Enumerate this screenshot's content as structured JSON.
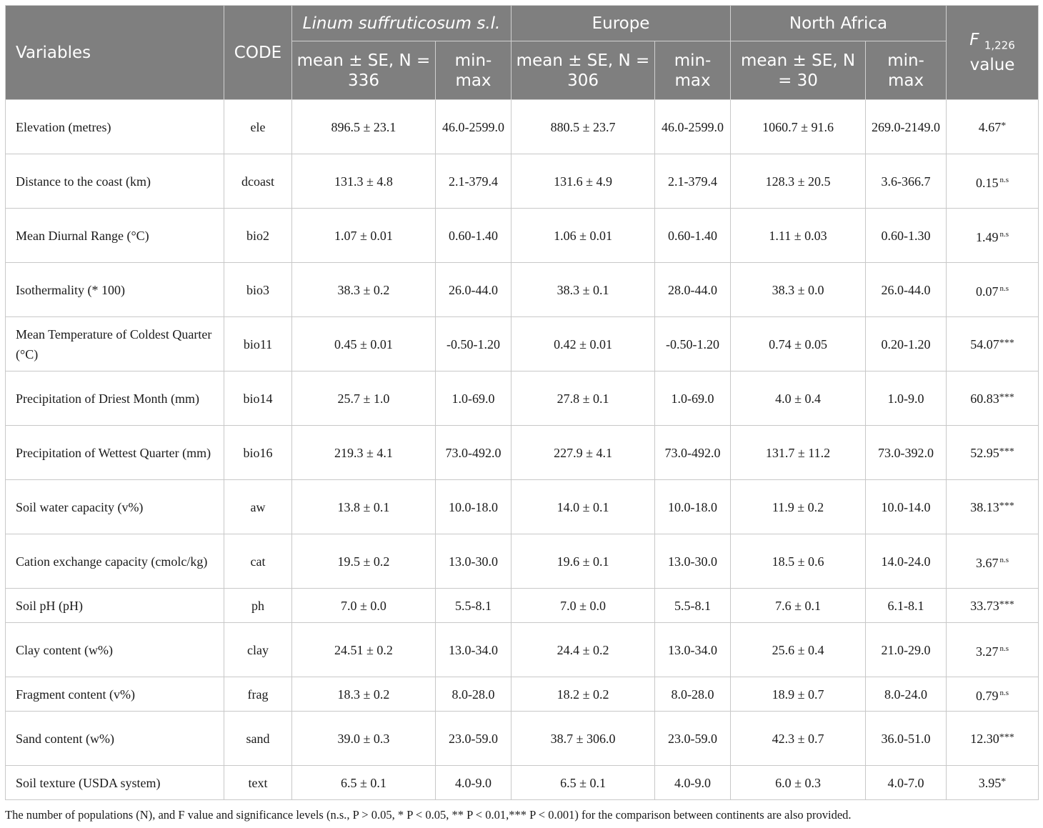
{
  "table": {
    "header": {
      "variables": "Variables",
      "code": "CODE",
      "group1": "Linum suffruticosum s.l.",
      "group2": "Europe",
      "group3": "North Africa",
      "f_letter": "F",
      "f_sub": "1,226",
      "f_value": "value",
      "g1_mean": "mean ± SE, N = 336",
      "g1_minmax": "min-max",
      "g2_mean": "mean ± SE, N = 306",
      "g2_minmax": "min-max",
      "g3_mean": "mean ± SE, N = 30",
      "g3_minmax": "min-max"
    },
    "rows": [
      {
        "var": "Elevation (metres)",
        "code": "ele",
        "m1": "896.5 ± 23.1",
        "r1": "46.0-2599.0",
        "m2": "880.5 ± 23.7",
        "r2": "46.0-2599.0",
        "m3": "1060.7 ± 91.6",
        "r3": "269.0-2149.0",
        "f": "4.67",
        "sig": "*"
      },
      {
        "var": "Distance to the coast (km)",
        "code": "dcoast",
        "m1": "131.3 ± 4.8",
        "r1": "2.1-379.4",
        "m2": "131.6 ± 4.9",
        "r2": "2.1-379.4",
        "m3": "128.3 ± 20.5",
        "r3": "3.6-366.7",
        "f": "0.15",
        "sig": "n.s"
      },
      {
        "var": "Mean Diurnal Range (°C)",
        "code": "bio2",
        "m1": "1.07 ± 0.01",
        "r1": "0.60-1.40",
        "m2": "1.06 ± 0.01",
        "r2": "0.60-1.40",
        "m3": "1.11 ± 0.03",
        "r3": "0.60-1.30",
        "f": "1.49",
        "sig": "n.s"
      },
      {
        "var": "Isothermality (* 100)",
        "code": "bio3",
        "m1": "38.3 ± 0.2",
        "r1": "26.0-44.0",
        "m2": "38.3 ± 0.1",
        "r2": "28.0-44.0",
        "m3": "38.3 ± 0.0",
        "r3": "26.0-44.0",
        "f": "0.07",
        "sig": "n.s"
      },
      {
        "var": "Mean Temperature of Coldest Quarter (°C)",
        "code": "bio11",
        "m1": "0.45 ± 0.01",
        "r1": "-0.50-1.20",
        "m2": "0.42 ± 0.01",
        "r2": "-0.50-1.20",
        "m3": "0.74 ± 0.05",
        "r3": "0.20-1.20",
        "f": "54.07",
        "sig": "***"
      },
      {
        "var": "Precipitation of Driest Month (mm)",
        "code": "bio14",
        "m1": "25.7 ± 1.0",
        "r1": "1.0-69.0",
        "m2": "27.8 ± 0.1",
        "r2": "1.0-69.0",
        "m3": "4.0 ± 0.4",
        "r3": "1.0-9.0",
        "f": "60.83",
        "sig": "***"
      },
      {
        "var": "Precipitation of Wettest Quarter (mm)",
        "code": "bio16",
        "m1": "219.3 ± 4.1",
        "r1": "73.0-492.0",
        "m2": "227.9 ± 4.1",
        "r2": "73.0-492.0",
        "m3": "131.7 ± 11.2",
        "r3": "73.0-392.0",
        "f": "52.95",
        "sig": "***"
      },
      {
        "var": "Soil water capacity (v%)",
        "code": "aw",
        "m1": "13.8 ± 0.1",
        "r1": "10.0-18.0",
        "m2": "14.0 ± 0.1",
        "r2": "10.0-18.0",
        "m3": "11.9 ± 0.2",
        "r3": "10.0-14.0",
        "f": "38.13",
        "sig": "***"
      },
      {
        "var": "Cation exchange capacity (cmolc/kg)",
        "code": "cat",
        "m1": "19.5 ± 0.2",
        "r1": "13.0-30.0",
        "m2": "19.6 ± 0.1",
        "r2": "13.0-30.0",
        "m3": "18.5 ± 0.6",
        "r3": "14.0-24.0",
        "f": "3.67",
        "sig": "n.s"
      },
      {
        "var": "Soil pH (pH)",
        "code": "ph",
        "m1": "7.0 ± 0.0",
        "r1": "5.5-8.1",
        "m2": "7.0 ± 0.0",
        "r2": "5.5-8.1",
        "m3": "7.6 ± 0.1",
        "r3": "6.1-8.1",
        "f": "33.73",
        "sig": "***"
      },
      {
        "var": "Clay content (w%)",
        "code": "clay",
        "m1": "24.51 ± 0.2",
        "r1": "13.0-34.0",
        "m2": "24.4 ± 0.2",
        "r2": "13.0-34.0",
        "m3": "25.6 ± 0.4",
        "r3": "21.0-29.0",
        "f": "3.27",
        "sig": "n.s"
      },
      {
        "var": "Fragment content (v%)",
        "code": "frag",
        "m1": "18.3 ± 0.2",
        "r1": "8.0-28.0",
        "m2": "18.2 ± 0.2",
        "r2": "8.0-28.0",
        "m3": "18.9 ± 0.7",
        "r3": "8.0-24.0",
        "f": "0.79",
        "sig": "n.s"
      },
      {
        "var": "Sand content (w%)",
        "code": "sand",
        "m1": "39.0 ± 0.3",
        "r1": "23.0-59.0",
        "m2": "38.7 ± 306.0",
        "r2": "23.0-59.0",
        "m3": "42.3 ± 0.7",
        "r3": "36.0-51.0",
        "f": "12.30",
        "sig": "***"
      },
      {
        "var": "Soil texture (USDA system)",
        "code": "text",
        "m1": "6.5 ± 0.1",
        "r1": "4.0-9.0",
        "m2": "6.5 ± 0.1",
        "r2": "4.0-9.0",
        "m3": "6.0 ± 0.3",
        "r3": "4.0-7.0",
        "f": "3.95",
        "sig": "*"
      }
    ]
  },
  "footnote": "The number of populations (N), and F value and significance levels (n.s., P > 0.05, * P < 0.05, ** P < 0.01,*** P < 0.001) for the comparison between continents are also provided.",
  "colors": {
    "header_bg": "#7f7f7f",
    "header_text": "#ffffff",
    "grid": "#c8c8c8"
  }
}
